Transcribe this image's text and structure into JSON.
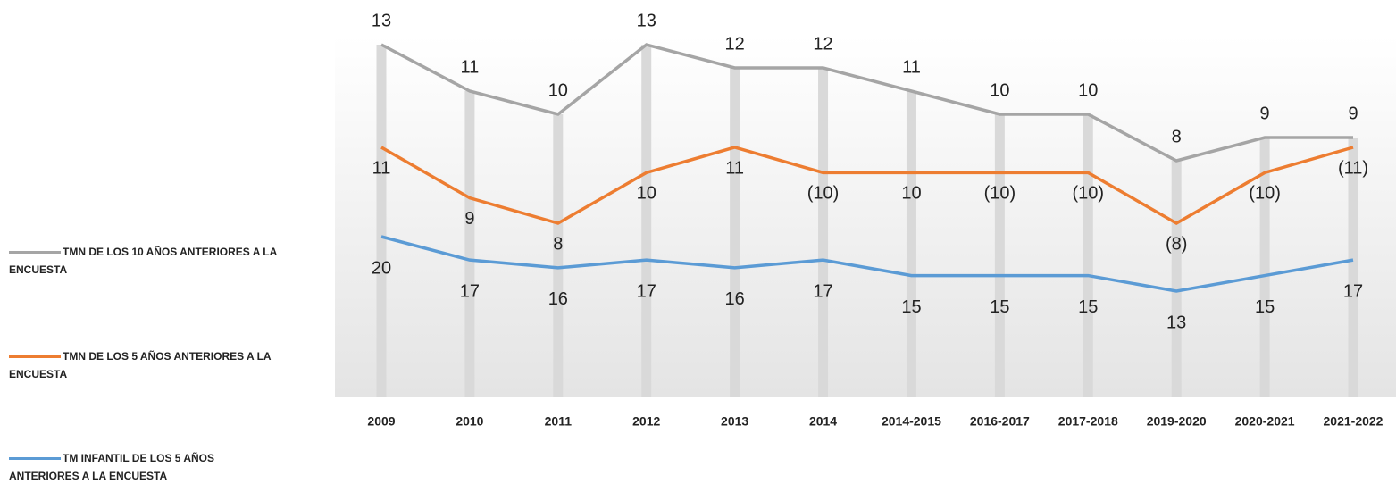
{
  "chart_data": {
    "type": "line",
    "categories": [
      "2009",
      "2010",
      "2011",
      "2012",
      "2013",
      "2014",
      "2014-2015",
      "2016-2017",
      "2017-2018",
      "2019-2020",
      "2020-2021",
      "2021-2022"
    ],
    "series": [
      {
        "name": "TMN DE LOS 10 AÑOS ANTERIORES A LA ENCUESTA",
        "color": "#a5a5a5",
        "values": [
          13,
          11,
          10,
          13,
          12,
          12,
          11,
          10,
          10,
          8,
          9,
          9
        ]
      },
      {
        "name": "TMN DE LOS 5 AÑOS ANTERIORES A LA ENCUESTA",
        "color": "#ed7d31",
        "values": [
          11,
          9,
          8,
          10,
          11,
          10,
          10,
          10,
          10,
          8,
          10,
          11
        ],
        "value_labels": [
          "11",
          "9",
          "8",
          "10",
          "11",
          "(10)",
          "10",
          "(10)",
          "(10)",
          "(8)",
          "(10)",
          "(11)"
        ]
      },
      {
        "name": "TM INFANTIL DE LOS 5 AÑOS ANTERIORES A LA ENCUESTA",
        "color": "#5b9bd5",
        "values": [
          20,
          17,
          16,
          17,
          16,
          17,
          15,
          15,
          15,
          13,
          15,
          17
        ]
      }
    ]
  }
}
